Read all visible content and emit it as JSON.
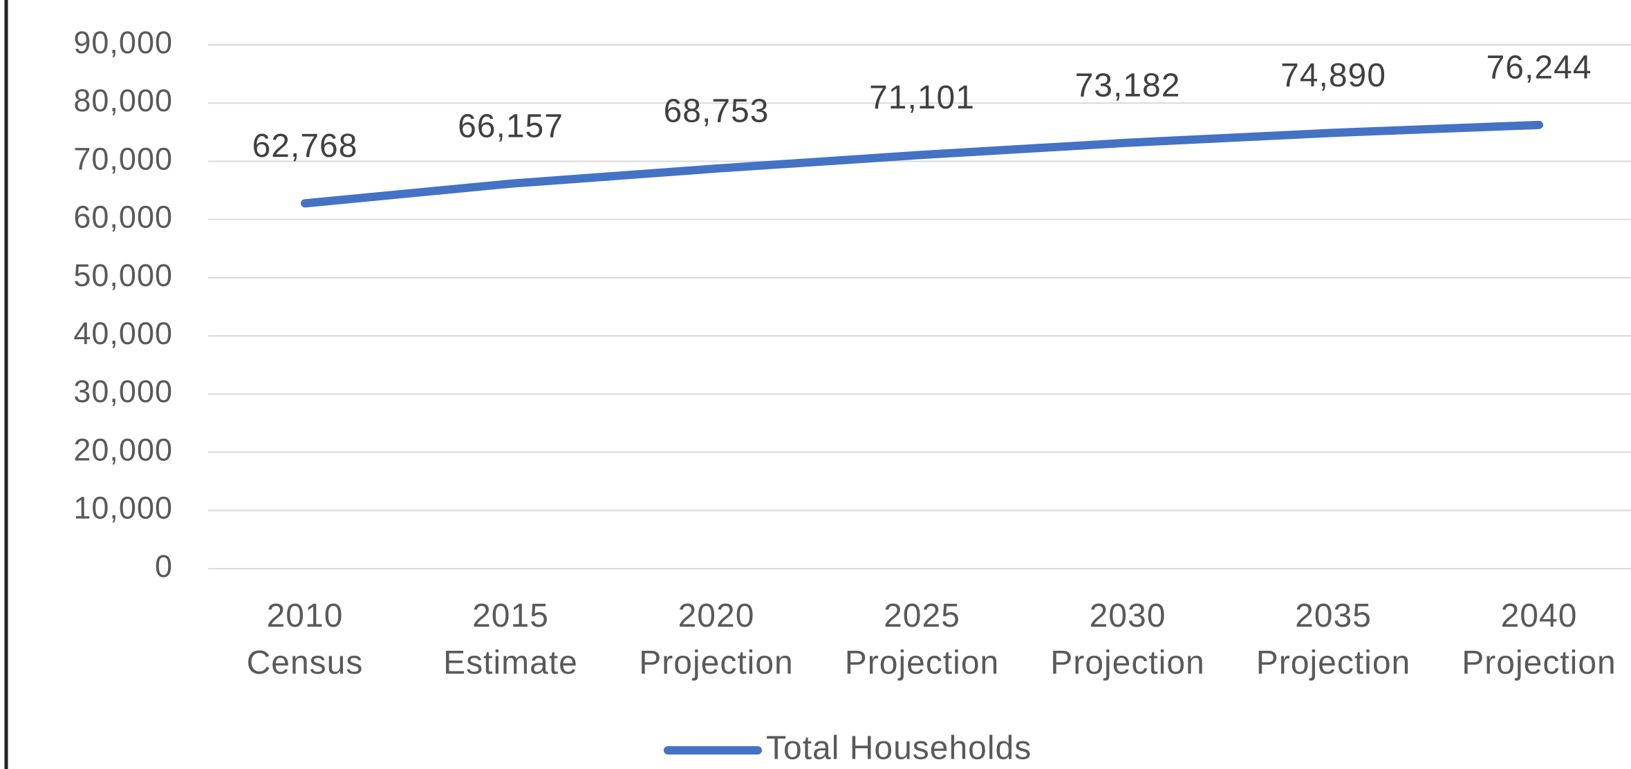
{
  "chart_data": {
    "type": "line",
    "categories": [
      "2010 Census",
      "2015 Estimate",
      "2020 Projection",
      "2025 Projection",
      "2030 Projection",
      "2035 Projection",
      "2040 Projection"
    ],
    "series": [
      {
        "name": "Total Households",
        "color": "#4472c4",
        "values": [
          62768,
          66157,
          68753,
          71101,
          73182,
          74890,
          76244
        ],
        "value_labels": [
          "62,768",
          "66,157",
          "68,753",
          "71,101",
          "73,182",
          "74,890",
          "76,244"
        ]
      }
    ],
    "ylim": [
      0,
      90000
    ],
    "yticks": [
      0,
      {
        "value": 10000,
        "label": "10,000"
      },
      {
        "value": 20000,
        "label": "20,000"
      },
      {
        "value": 30000,
        "label": "30,000"
      },
      {
        "value": 40000,
        "label": "40,000"
      },
      {
        "value": 50000,
        "label": "50,000"
      },
      {
        "value": 60000,
        "label": "60,000"
      },
      {
        "value": 70000,
        "label": "70,000"
      },
      {
        "value": 80000,
        "label": "80,000"
      },
      {
        "value": 90000,
        "label": "90,000"
      }
    ],
    "grid": true,
    "legend": "bottom"
  }
}
